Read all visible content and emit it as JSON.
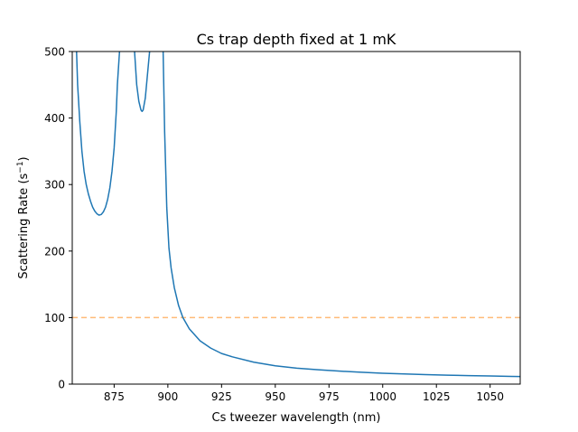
{
  "chart_data": {
    "type": "line",
    "title": "Cs trap depth fixed at 1 mK",
    "xlabel": "Cs tweezer wavelength (nm)",
    "ylabel": "Scattering Rate (s",
    "ylabel_sup": "−1",
    "ylabel_end": ")",
    "xlim": [
      855.5,
      1064
    ],
    "ylim": [
      0,
      500
    ],
    "xticks": [
      875,
      900,
      925,
      950,
      975,
      1000,
      1025,
      1050
    ],
    "yticks": [
      0,
      100,
      200,
      300,
      400,
      500
    ],
    "grid": false,
    "legend": "none",
    "series": [
      {
        "color": "#1f77b4",
        "segments": [
          {
            "x": [
              857.5,
              858,
              859,
              860,
              861,
              862,
              863,
              864,
              865,
              866,
              867,
              868,
              869,
              870,
              871,
              872,
              873,
              874,
              875,
              876,
              876.5,
              877.5
            ],
            "y": [
              500,
              450,
              395,
              350,
              320,
              300,
              286,
              275,
              266,
              260,
              256,
              254,
              255,
              259,
              266,
              278,
              295,
              320,
              355,
              410,
              450,
              500
            ]
          },
          {
            "x": [
              884.5,
              885.5,
              886.5,
              887.5,
              888,
              888.5,
              889.5,
              890.5,
              891.5
            ],
            "y": [
              500,
              450,
              425,
              412,
              410,
              412,
              430,
              465,
              500
            ]
          },
          {
            "x": [
              897.8,
              898.5,
              899.5,
              900.5,
              901.5,
              903,
              905,
              907,
              910,
              915,
              920,
              925,
              930,
              940,
              950,
              960,
              970,
              980,
              990,
              1000,
              1010,
              1020,
              1030,
              1040,
              1050,
              1060,
              1064
            ],
            "y": [
              500,
              380,
              265,
              205,
              175,
              145,
              118,
              100,
              83,
              65,
              54,
              46,
              41,
              33,
              27.5,
              24,
              21.5,
              19.5,
              17.8,
              16.3,
              15.2,
              14.2,
              13.4,
              12.8,
              12.2,
              11.6,
              11.4
            ]
          }
        ]
      }
    ],
    "threshold": {
      "y": 100,
      "color": "#ffbb78",
      "style": "dashed"
    }
  }
}
